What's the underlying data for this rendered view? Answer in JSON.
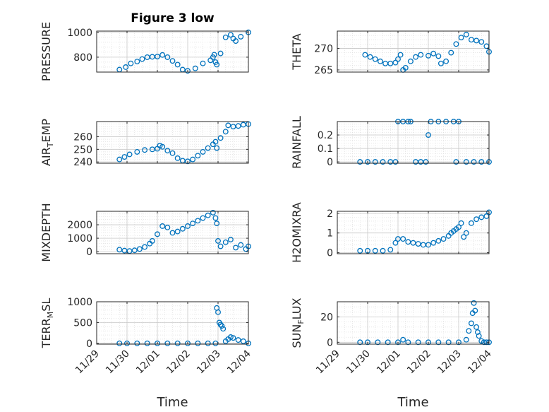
{
  "figure_title": "Figure 3 low",
  "colors": {
    "marker": "#0072BD",
    "axis": "#262626",
    "grid": "#c8c8c8"
  },
  "chart_data": [
    {
      "type": "scatter",
      "title": "Figure 3 low",
      "ylabel": {
        "text": "PRESSURE"
      },
      "xlabel": "",
      "ylim": [
        680,
        1010
      ],
      "yticks": [
        800,
        1000
      ],
      "xtick_labels": [],
      "grid": true,
      "x": [
        "11/29 18:00",
        "11/29 23:00",
        "11/30 03:00",
        "11/30 08:00",
        "11/30 12:00",
        "11/30 16:00",
        "11/30 20:00",
        "12/01 00:00",
        "12/01 04:00",
        "12/01 08:00",
        "12/01 12:00",
        "12/01 16:00",
        "12/01 20:00",
        "12/02 00:00",
        "12/02 06:00",
        "12/02 12:00",
        "12/02 18:00",
        "12/02 20:00",
        "12/02 21:00",
        "12/02 22:00",
        "12/02 23:00",
        "12/03 02:00",
        "12/03 06:00",
        "12/03 10:00",
        "12/03 12:00",
        "12/03 14:00",
        "12/03 18:00",
        "12/04 00:00"
      ],
      "values": [
        700,
        720,
        750,
        765,
        785,
        800,
        803,
        805,
        818,
        800,
        770,
        740,
        700,
        690,
        710,
        750,
        775,
        800,
        820,
        760,
        740,
        830,
        960,
        980,
        950,
        930,
        965,
        1000
      ]
    },
    {
      "type": "scatter",
      "ylabel": {
        "text": "THETA"
      },
      "xlabel": "",
      "ylim": [
        264.5,
        274
      ],
      "yticks": [
        265,
        270
      ],
      "xtick_labels": [],
      "grid": true,
      "x": [
        "11/29 22:00",
        "11/30 02:00",
        "11/30 06:00",
        "11/30 10:00",
        "11/30 14:00",
        "11/30 18:00",
        "11/30 22:00",
        "12/01 00:00",
        "12/01 02:00",
        "12/01 04:00",
        "12/01 06:00",
        "12/01 10:00",
        "12/01 14:00",
        "12/01 18:00",
        "12/02 00:00",
        "12/02 04:00",
        "12/02 08:00",
        "12/02 10:00",
        "12/02 14:00",
        "12/02 18:00",
        "12/02 22:00",
        "12/03 02:00",
        "12/03 06:00",
        "12/03 10:00",
        "12/03 14:00",
        "12/03 18:00",
        "12/03 22:00",
        "12/04 00:00"
      ],
      "values": [
        268.5,
        268,
        267.5,
        267,
        266.5,
        266.5,
        266.7,
        267.5,
        268.5,
        265,
        265.5,
        267,
        268,
        268.5,
        268.3,
        268.8,
        268.2,
        266.5,
        267,
        269,
        271,
        272.5,
        273.2,
        272,
        271.8,
        271.5,
        270.5,
        269.2
      ]
    },
    {
      "type": "scatter",
      "ylabel": {
        "main": "AIR",
        "sub": "T",
        "rest": "EMP"
      },
      "xlabel": "",
      "ylim": [
        239,
        272
      ],
      "yticks": [
        240,
        250,
        260
      ],
      "xtick_labels": [],
      "grid": true,
      "x": [
        "11/29 18:00",
        "11/29 22:00",
        "11/30 02:00",
        "11/30 08:00",
        "11/30 14:00",
        "11/30 20:00",
        "12/01 00:00",
        "12/01 02:00",
        "12/01 04:00",
        "12/01 08:00",
        "12/01 12:00",
        "12/01 16:00",
        "12/01 20:00",
        "12/02 00:00",
        "12/02 04:00",
        "12/02 08:00",
        "12/02 12:00",
        "12/02 16:00",
        "12/02 20:00",
        "12/02 22:00",
        "12/02 23:00",
        "12/03 02:00",
        "12/03 06:00",
        "12/03 08:00",
        "12/03 12:00",
        "12/03 16:00",
        "12/03 20:00",
        "12/04 00:00"
      ],
      "values": [
        242,
        244,
        246,
        248,
        249.5,
        250,
        250.5,
        253,
        252,
        249,
        247,
        243,
        241,
        240.5,
        242,
        245,
        248,
        251,
        254,
        256,
        251,
        259,
        264,
        269,
        268,
        268.5,
        269.5,
        270
      ]
    },
    {
      "type": "scatter",
      "ylabel": {
        "text": "RAINFALL"
      },
      "xlabel": "",
      "ylim": [
        -0.01,
        0.3
      ],
      "yticks": [
        0,
        0.1,
        0.2
      ],
      "xtick_labels": [],
      "grid": true,
      "x": [
        "11/29 18:00",
        "11/30 00:00",
        "11/30 06:00",
        "11/30 12:00",
        "11/30 18:00",
        "11/30 22:00",
        "12/01 00:00",
        "12/01 04:00",
        "12/01 08:00",
        "12/01 10:00",
        "12/01 14:00",
        "12/01 18:00",
        "12/01 22:00",
        "12/02 00:00",
        "12/02 02:00",
        "12/02 08:00",
        "12/02 14:00",
        "12/02 20:00",
        "12/02 22:00",
        "12/03 00:00",
        "12/03 06:00",
        "12/03 12:00",
        "12/03 18:00",
        "12/04 00:00"
      ],
      "values": [
        0,
        0,
        0,
        0,
        0,
        0,
        0.3,
        0.3,
        0.3,
        0.3,
        0,
        0,
        0,
        0.2,
        0.3,
        0.3,
        0.3,
        0.3,
        0,
        0.3,
        0,
        0,
        0,
        0
      ]
    },
    {
      "type": "scatter",
      "ylabel": {
        "text": "MIXDEPTH"
      },
      "xlabel": "",
      "ylim": [
        -150,
        3000
      ],
      "yticks": [
        0,
        1000,
        2000
      ],
      "xtick_labels": [],
      "grid": true,
      "x": [
        "11/29 18:00",
        "11/29 22:00",
        "11/30 02:00",
        "11/30 06:00",
        "11/30 10:00",
        "11/30 14:00",
        "11/30 18:00",
        "11/30 20:00",
        "12/01 00:00",
        "12/01 04:00",
        "12/01 08:00",
        "12/01 12:00",
        "12/01 16:00",
        "12/01 20:00",
        "12/02 00:00",
        "12/02 04:00",
        "12/02 08:00",
        "12/02 12:00",
        "12/02 16:00",
        "12/02 20:00",
        "12/02 22:00",
        "12/02 23:00",
        "12/03 00:00",
        "12/03 02:00",
        "12/03 06:00",
        "12/03 10:00",
        "12/03 14:00",
        "12/03 18:00",
        "12/03 22:00",
        "12/04 00:00"
      ],
      "values": [
        150,
        80,
        50,
        100,
        200,
        350,
        600,
        800,
        1300,
        1900,
        1800,
        1400,
        1500,
        1700,
        1900,
        2100,
        2300,
        2500,
        2700,
        2900,
        2500,
        2100,
        800,
        400,
        700,
        900,
        300,
        500,
        200,
        400
      ]
    },
    {
      "type": "scatter",
      "ylabel": {
        "text": "H2OMIXRA"
      },
      "xlabel": "",
      "ylim": [
        -0.05,
        2.1
      ],
      "yticks": [
        0,
        1,
        2
      ],
      "xtick_labels": [],
      "grid": true,
      "x": [
        "11/29 18:00",
        "11/30 00:00",
        "11/30 06:00",
        "11/30 12:00",
        "11/30 18:00",
        "11/30 22:00",
        "12/01 00:00",
        "12/01 04:00",
        "12/01 08:00",
        "12/01 12:00",
        "12/01 16:00",
        "12/01 20:00",
        "12/02 00:00",
        "12/02 04:00",
        "12/02 08:00",
        "12/02 12:00",
        "12/02 16:00",
        "12/02 18:00",
        "12/02 20:00",
        "12/02 22:00",
        "12/03 00:00",
        "12/03 02:00",
        "12/03 04:00",
        "12/03 06:00",
        "12/03 10:00",
        "12/03 14:00",
        "12/03 18:00",
        "12/03 22:00",
        "12/04 00:00"
      ],
      "values": [
        0.1,
        0.1,
        0.1,
        0.1,
        0.15,
        0.5,
        0.7,
        0.7,
        0.55,
        0.5,
        0.45,
        0.4,
        0.4,
        0.5,
        0.6,
        0.7,
        0.85,
        1.0,
        1.1,
        1.2,
        1.3,
        1.5,
        0.8,
        1.0,
        1.5,
        1.7,
        1.8,
        1.85,
        2.05
      ]
    },
    {
      "type": "scatter",
      "ylabel": {
        "main": "TERR",
        "sub": "M",
        "rest": "SL"
      },
      "xlabel": "Time",
      "ylim": [
        -20,
        1000
      ],
      "yticks": [
        0,
        500,
        1000
      ],
      "xtick_labels": [
        "11/29",
        "11/30",
        "12/01",
        "12/02",
        "12/03",
        "12/04"
      ],
      "grid": true,
      "x": [
        "11/29 18:00",
        "11/30 00:00",
        "11/30 08:00",
        "11/30 16:00",
        "12/01 00:00",
        "12/01 08:00",
        "12/01 16:00",
        "12/02 00:00",
        "12/02 08:00",
        "12/02 16:00",
        "12/02 22:00",
        "12/02 23:00",
        "12/03 00:00",
        "12/03 01:00",
        "12/03 02:00",
        "12/03 03:00",
        "12/03 04:00",
        "12/03 06:00",
        "12/03 08:00",
        "12/03 10:00",
        "12/03 12:00",
        "12/03 16:00",
        "12/03 20:00",
        "12/04 00:00"
      ],
      "values": [
        0,
        0,
        0,
        0,
        0,
        0,
        0,
        0,
        0,
        0,
        0,
        850,
        750,
        500,
        450,
        420,
        350,
        50,
        100,
        150,
        130,
        80,
        50,
        0
      ]
    },
    {
      "type": "scatter",
      "ylabel": {
        "main": "SUN",
        "sub": "F",
        "rest": "LUX"
      },
      "xlabel": "Time",
      "ylim": [
        -1.5,
        32
      ],
      "yticks": [
        0,
        20
      ],
      "xtick_labels": [
        "11/29",
        "11/30",
        "12/01",
        "12/02",
        "12/03",
        "12/04"
      ],
      "grid": true,
      "x": [
        "11/29 18:00",
        "11/30 00:00",
        "11/30 08:00",
        "11/30 16:00",
        "12/01 00:00",
        "12/01 04:00",
        "12/01 08:00",
        "12/01 16:00",
        "12/02 00:00",
        "12/02 08:00",
        "12/02 16:00",
        "12/03 00:00",
        "12/03 06:00",
        "12/03 08:00",
        "12/03 10:00",
        "12/03 11:00",
        "12/03 12:00",
        "12/03 13:00",
        "12/03 14:00",
        "12/03 15:00",
        "12/03 16:00",
        "12/03 18:00",
        "12/03 20:00",
        "12/03 22:00",
        "12/04 00:00"
      ],
      "values": [
        0,
        0,
        0,
        0,
        0,
        2,
        0,
        0,
        0,
        0,
        0,
        0,
        2,
        9,
        15,
        23,
        31,
        25,
        12,
        8,
        5,
        1,
        0,
        0,
        0
      ]
    }
  ]
}
